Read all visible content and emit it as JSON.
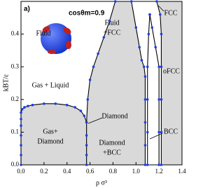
{
  "chart_data": {
    "type": "line",
    "x_label": "ρ σ³",
    "y_label": "kBT/ε",
    "xlim": [
      0,
      1.4
    ],
    "ylim": [
      0,
      0.5
    ],
    "xticks": [
      {
        "value": 0,
        "label": "0.0"
      },
      {
        "value": 0.2,
        "label": "0.2"
      },
      {
        "value": 0.4,
        "label": "0.4"
      },
      {
        "value": 0.6,
        "label": "0.6"
      },
      {
        "value": 0.8,
        "label": "0.8"
      },
      {
        "value": 1.0,
        "label": "1.0"
      },
      {
        "value": 1.2,
        "label": "1.2"
      },
      {
        "value": 1.4,
        "label": "1.4"
      }
    ],
    "yticks": [
      {
        "value": 0,
        "label": "0.0"
      },
      {
        "value": 0.1,
        "label": "0.1"
      },
      {
        "value": 0.2,
        "label": "0.2"
      },
      {
        "value": 0.3,
        "label": "0.3"
      },
      {
        "value": 0.4,
        "label": "0.4"
      }
    ],
    "color": "#1f3fe0",
    "fill_color": "#d9d9d9",
    "annotations": [
      "a)",
      "cosθm=0.9",
      "Fluid",
      "Fluid",
      "+FCC",
      "Gas + Liquid",
      "Gas+",
      "Diamond",
      "Diamond",
      "Diamond",
      "+BCC",
      "FCC",
      "oFCC",
      "BCC"
    ],
    "series": [
      {
        "x": [
          0,
          0,
          0,
          0,
          0,
          0,
          0,
          0.01,
          0.03,
          0.06,
          0.1,
          0.2,
          0.3,
          0.4,
          0.47,
          0.52,
          0.55,
          0.57
        ],
        "y": [
          0,
          0.03,
          0.06,
          0.09,
          0.12,
          0.14,
          0.16,
          0.17,
          0.176,
          0.18,
          0.183,
          0.187,
          0.187,
          0.183,
          0.176,
          0.165,
          0.15,
          0.13
        ]
      },
      {
        "x": [
          0.57,
          0.57,
          0.57,
          0.57,
          0.57
        ],
        "y": [
          0,
          0.03,
          0.06,
          0.09,
          0.13
        ]
      },
      {
        "x": [
          0.57,
          0.58,
          0.6,
          0.63,
          0.67,
          0.72,
          0.77,
          0.82
        ],
        "y": [
          0.13,
          0.2,
          0.26,
          0.3,
          0.34,
          0.39,
          0.44,
          0.5
        ]
      },
      {
        "x": [
          0.96,
          1.0,
          1.03,
          1.05,
          1.07,
          1.08,
          1.08,
          1.08,
          1.08,
          1.08
        ],
        "y": [
          0.5,
          0.42,
          0.36,
          0.32,
          0.3,
          0.27,
          0.2,
          0.13,
          0.06,
          0
        ]
      },
      {
        "x": [
          1.1,
          1.1,
          1.1,
          1.1,
          1.11,
          1.12
        ],
        "y": [
          0,
          0.1,
          0.2,
          0.3,
          0.4,
          0.46
        ]
      },
      {
        "x": [
          1.12,
          1.14,
          1.17,
          1.2,
          1.2,
          1.2,
          1.2
        ],
        "y": [
          0.46,
          0.42,
          0.36,
          0.3,
          0.2,
          0.1,
          0
        ]
      },
      {
        "x": [
          1.18,
          1.21,
          1.22,
          1.22,
          1.22,
          1.22,
          1.22
        ],
        "y": [
          0.5,
          0.46,
          0.4,
          0.3,
          0.2,
          0.1,
          0
        ]
      }
    ]
  }
}
